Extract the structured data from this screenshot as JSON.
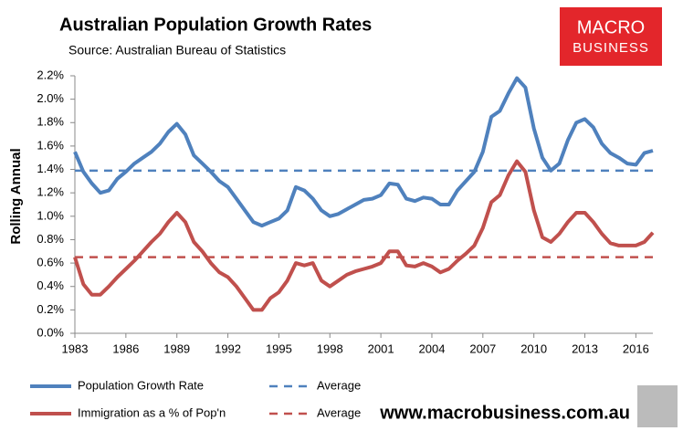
{
  "chart_data": {
    "type": "line",
    "title": "Australian Population Growth Rates",
    "subtitle": "Source: Australian Bureau of Statistics",
    "y_label": "Rolling Annual",
    "logo": [
      "MACRO",
      "BUSINESS"
    ],
    "footer_url": "www.macrobusiness.com.au",
    "x": [
      1983,
      1983.5,
      1984,
      1984.5,
      1985,
      1985.5,
      1986,
      1986.5,
      1987,
      1987.5,
      1988,
      1988.5,
      1989,
      1989.5,
      1990,
      1990.5,
      1991,
      1991.5,
      1992,
      1992.5,
      1993,
      1993.5,
      1994,
      1994.5,
      1995,
      1995.5,
      1996,
      1996.5,
      1997,
      1997.5,
      1998,
      1998.5,
      1999,
      1999.5,
      2000,
      2000.5,
      2001,
      2001.5,
      2002,
      2002.5,
      2003,
      2003.5,
      2004,
      2004.5,
      2005,
      2005.5,
      2006,
      2006.5,
      2007,
      2007.5,
      2008,
      2008.5,
      2009,
      2009.5,
      2010,
      2010.5,
      2011,
      2011.5,
      2012,
      2012.5,
      2013,
      2013.5,
      2014,
      2014.5,
      2015,
      2015.5,
      2016,
      2016.5,
      2017
    ],
    "series": [
      {
        "name": "Population Growth Rate",
        "color": "#4f81bd",
        "values": [
          1.55,
          1.38,
          1.28,
          1.2,
          1.22,
          1.32,
          1.38,
          1.45,
          1.5,
          1.55,
          1.62,
          1.72,
          1.79,
          1.7,
          1.52,
          1.45,
          1.38,
          1.3,
          1.25,
          1.15,
          1.05,
          0.95,
          0.92,
          0.95,
          0.98,
          1.05,
          1.25,
          1.22,
          1.15,
          1.05,
          1.0,
          1.02,
          1.06,
          1.1,
          1.14,
          1.15,
          1.18,
          1.28,
          1.27,
          1.15,
          1.13,
          1.16,
          1.15,
          1.1,
          1.1,
          1.22,
          1.3,
          1.38,
          1.55,
          1.85,
          1.9,
          2.05,
          2.18,
          2.1,
          1.75,
          1.5,
          1.39,
          1.45,
          1.65,
          1.8,
          1.83,
          1.76,
          1.62,
          1.54,
          1.5,
          1.45,
          1.44,
          1.54,
          1.56
        ]
      },
      {
        "name": "Average",
        "color": "#4f81bd",
        "dashed": true,
        "value": 1.39
      },
      {
        "name": "Immigration as a % of Pop'n",
        "color": "#c0504d",
        "values": [
          0.65,
          0.42,
          0.33,
          0.33,
          0.4,
          0.48,
          0.55,
          0.62,
          0.7,
          0.78,
          0.85,
          0.95,
          1.03,
          0.95,
          0.78,
          0.7,
          0.6,
          0.52,
          0.48,
          0.4,
          0.3,
          0.2,
          0.2,
          0.3,
          0.35,
          0.45,
          0.6,
          0.58,
          0.6,
          0.45,
          0.4,
          0.45,
          0.5,
          0.53,
          0.55,
          0.57,
          0.6,
          0.7,
          0.7,
          0.58,
          0.57,
          0.6,
          0.57,
          0.52,
          0.55,
          0.62,
          0.68,
          0.75,
          0.9,
          1.12,
          1.18,
          1.35,
          1.47,
          1.38,
          1.05,
          0.82,
          0.78,
          0.85,
          0.95,
          1.03,
          1.03,
          0.95,
          0.85,
          0.77,
          0.75,
          0.75,
          0.75,
          0.78,
          0.86
        ]
      },
      {
        "name": "Average",
        "color": "#c0504d",
        "dashed": true,
        "value": 0.65
      }
    ],
    "xlim": [
      1983,
      2017
    ],
    "xticks": [
      1983,
      1986,
      1989,
      1992,
      1995,
      1998,
      2001,
      2004,
      2007,
      2010,
      2013,
      2016
    ],
    "ylim": [
      0,
      2.2
    ],
    "yticks": [
      {
        "value": 0,
        "label": "0.0%"
      },
      {
        "value": 0.2,
        "label": "0.2%"
      },
      {
        "value": 0.4,
        "label": "0.4%"
      },
      {
        "value": 0.6,
        "label": "0.6%"
      },
      {
        "value": 0.8,
        "label": "0.8%"
      },
      {
        "value": 1.0,
        "label": "1.0%"
      },
      {
        "value": 1.2,
        "label": "1.2%"
      },
      {
        "value": 1.4,
        "label": "1.4%"
      },
      {
        "value": 1.6,
        "label": "1.6%"
      },
      {
        "value": 1.8,
        "label": "1.8%"
      },
      {
        "value": 2.0,
        "label": "2.0%"
      },
      {
        "value": 2.2,
        "label": "2.2%"
      }
    ],
    "grid": false
  }
}
